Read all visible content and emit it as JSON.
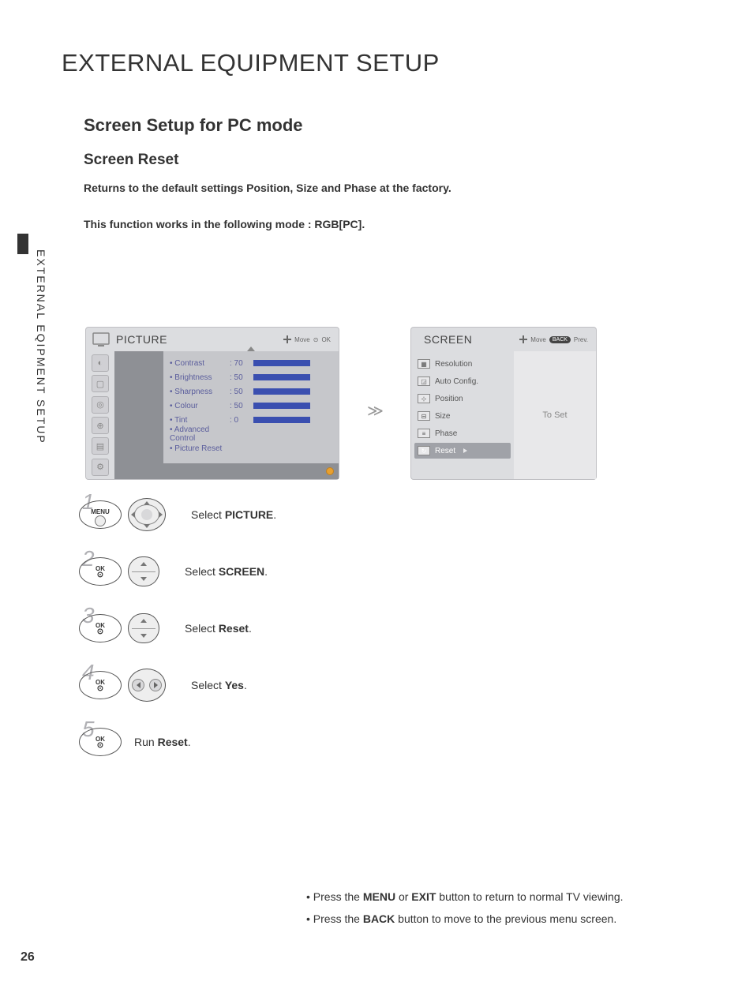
{
  "vertical_tab": "EXTERNAL EQIPMENT SETUP",
  "page_title": "EXTERNAL EQUIPMENT SETUP",
  "section_title": "Screen Setup for PC mode",
  "sub_title": "Screen Reset",
  "desc1": "Returns to the default settings Position, Size and Phase at the factory.",
  "desc2": "This function works in the following mode : RGB[PC].",
  "panel_left": {
    "title": "PICTURE",
    "hints_move": "Move",
    "hints_ok": "OK",
    "items": [
      {
        "label": "• Contrast",
        "value": ": 70",
        "bar_pct": 70
      },
      {
        "label": "• Brightness",
        "value": ": 50",
        "bar_pct": 50
      },
      {
        "label": "• Sharpness",
        "value": ": 50",
        "bar_pct": 50
      },
      {
        "label": "• Colour",
        "value": ": 50",
        "bar_pct": 50
      },
      {
        "label": "• Tint",
        "value": ": 0",
        "bar_pct": 50
      },
      {
        "label": "• Advanced Control",
        "value": "",
        "bar_pct": null
      },
      {
        "label": "• Picture Reset",
        "value": "",
        "bar_pct": null
      }
    ],
    "selected": "Screen"
  },
  "arrow_between": "≫",
  "panel_right": {
    "title": "SCREEN",
    "hints_move": "Move",
    "hints_back": "BACK",
    "hints_prev": "Prev.",
    "items": [
      {
        "label": "Resolution",
        "selected": false
      },
      {
        "label": "Auto Config.",
        "selected": false
      },
      {
        "label": "Position",
        "selected": false
      },
      {
        "label": "Size",
        "selected": false
      },
      {
        "label": "Phase",
        "selected": false
      },
      {
        "label": "Reset",
        "selected": true
      }
    ],
    "right_label": "To Set"
  },
  "steps": [
    {
      "num": "1",
      "btn1": "MENU",
      "btn2": "dpad",
      "text_pre": "Select ",
      "text_bold": "PICTURE",
      "text_post": "."
    },
    {
      "num": "2",
      "btn1": "OK",
      "btn2": "updown",
      "text_pre": "Select ",
      "text_bold": "SCREEN",
      "text_post": "."
    },
    {
      "num": "3",
      "btn1": "OK",
      "btn2": "updown",
      "text_pre": "Select ",
      "text_bold": "Reset",
      "text_post": "."
    },
    {
      "num": "4",
      "btn1": "OK",
      "btn2": "lr",
      "text_pre": "Select ",
      "text_bold": "Yes",
      "text_post": "."
    },
    {
      "num": "5",
      "btn1": "OK",
      "btn2": null,
      "text_pre": "Run ",
      "text_bold": "Reset",
      "text_post": "."
    }
  ],
  "footer1_pre": "• Press the ",
  "footer1_b1": "MENU",
  "footer1_mid": " or ",
  "footer1_b2": "EXIT",
  "footer1_post": " button to return to normal TV viewing.",
  "footer2_pre": "• Press the ",
  "footer2_b1": "BACK",
  "footer2_post": " button to move to the previous menu screen.",
  "page_num": "26"
}
